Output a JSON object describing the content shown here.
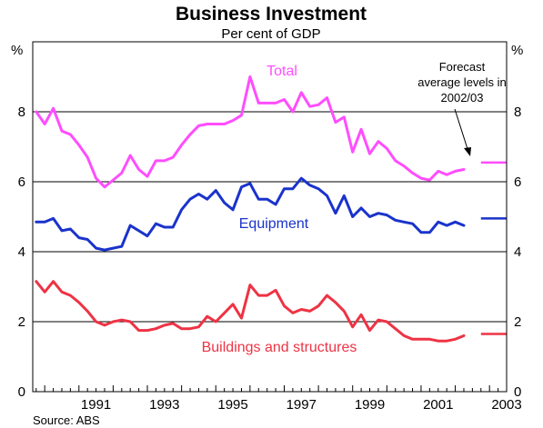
{
  "chart_data": {
    "type": "line",
    "title": "Business Investment",
    "subtitle": "Per cent of GDP",
    "unit_left": "%",
    "unit_right": "%",
    "source": "Source: ABS",
    "grid": true,
    "x_range": [
      1989.65,
      2003.5
    ],
    "y_range": [
      0,
      10
    ],
    "y_ticks": [
      0,
      2,
      4,
      6,
      8
    ],
    "y_tick_labels": [
      "0",
      "2",
      "4",
      "6",
      "8"
    ],
    "x_ticks": [
      1991,
      1993,
      1995,
      1997,
      1999,
      2001,
      2003
    ],
    "x_tick_labels": [
      "1991",
      "1993",
      "1995",
      "1997",
      "1999",
      "2001",
      "2003"
    ],
    "x_minor_step": 0.25,
    "series": [
      {
        "name": "Total",
        "color": "#ff4dff",
        "x": [
          1989.75,
          1990.0,
          1990.25,
          1990.5,
          1990.75,
          1991.0,
          1991.25,
          1991.5,
          1991.75,
          1992.0,
          1992.25,
          1992.5,
          1992.75,
          1993.0,
          1993.25,
          1993.5,
          1993.75,
          1994.0,
          1994.25,
          1994.5,
          1994.75,
          1995.0,
          1995.25,
          1995.5,
          1995.75,
          1996.0,
          1996.25,
          1996.5,
          1996.75,
          1997.0,
          1997.25,
          1997.5,
          1997.75,
          1998.0,
          1998.25,
          1998.5,
          1998.75,
          1999.0,
          1999.25,
          1999.5,
          1999.75,
          2000.0,
          2000.25,
          2000.5,
          2000.75,
          2001.0,
          2001.25,
          2001.5,
          2001.75,
          2002.0,
          2002.25
        ],
        "values": [
          8.0,
          7.65,
          8.1,
          7.45,
          7.35,
          7.05,
          6.7,
          6.1,
          5.85,
          6.05,
          6.25,
          6.75,
          6.35,
          6.15,
          6.6,
          6.6,
          6.7,
          7.05,
          7.35,
          7.6,
          7.65,
          7.65,
          7.65,
          7.75,
          7.9,
          9.0,
          8.25,
          8.25,
          8.25,
          8.35,
          8.0,
          8.55,
          8.15,
          8.2,
          8.4,
          7.7,
          7.85,
          6.85,
          7.5,
          6.8,
          7.15,
          6.95,
          6.6,
          6.45,
          6.25,
          6.1,
          6.05,
          6.3,
          6.2,
          6.3,
          6.35
        ]
      },
      {
        "name": "Equipment",
        "color": "#1a33cc",
        "x": [
          1989.75,
          1990.0,
          1990.25,
          1990.5,
          1990.75,
          1991.0,
          1991.25,
          1991.5,
          1991.75,
          1992.0,
          1992.25,
          1992.5,
          1992.75,
          1993.0,
          1993.25,
          1993.5,
          1993.75,
          1994.0,
          1994.25,
          1994.5,
          1994.75,
          1995.0,
          1995.25,
          1995.5,
          1995.75,
          1996.0,
          1996.25,
          1996.5,
          1996.75,
          1997.0,
          1997.25,
          1997.5,
          1997.75,
          1998.0,
          1998.25,
          1998.5,
          1998.75,
          1999.0,
          1999.25,
          1999.5,
          1999.75,
          2000.0,
          2000.25,
          2000.5,
          2000.75,
          2001.0,
          2001.25,
          2001.5,
          2001.75,
          2002.0,
          2002.25
        ],
        "values": [
          4.85,
          4.85,
          4.95,
          4.6,
          4.65,
          4.4,
          4.35,
          4.1,
          4.05,
          4.1,
          4.15,
          4.75,
          4.6,
          4.45,
          4.8,
          4.7,
          4.7,
          5.2,
          5.5,
          5.65,
          5.5,
          5.75,
          5.4,
          5.2,
          5.85,
          5.95,
          5.5,
          5.5,
          5.35,
          5.8,
          5.8,
          6.1,
          5.9,
          5.8,
          5.6,
          5.1,
          5.6,
          5.0,
          5.25,
          5.0,
          5.1,
          5.05,
          4.9,
          4.85,
          4.8,
          4.55,
          4.55,
          4.85,
          4.75,
          4.85,
          4.75
        ]
      },
      {
        "name": "Buildings and structures",
        "color": "#ee3344",
        "x": [
          1989.75,
          1990.0,
          1990.25,
          1990.5,
          1990.75,
          1991.0,
          1991.25,
          1991.5,
          1991.75,
          1992.0,
          1992.25,
          1992.5,
          1992.75,
          1993.0,
          1993.25,
          1993.5,
          1993.75,
          1994.0,
          1994.25,
          1994.5,
          1994.75,
          1995.0,
          1995.25,
          1995.5,
          1995.75,
          1996.0,
          1996.25,
          1996.5,
          1996.75,
          1997.0,
          1997.25,
          1997.5,
          1997.75,
          1998.0,
          1998.25,
          1998.5,
          1998.75,
          1999.0,
          1999.25,
          1999.5,
          1999.75,
          2000.0,
          2000.25,
          2000.5,
          2000.75,
          2001.0,
          2001.25,
          2001.5,
          2001.75,
          2002.0,
          2002.25
        ],
        "values": [
          3.15,
          2.85,
          3.15,
          2.85,
          2.75,
          2.55,
          2.3,
          2.0,
          1.9,
          2.0,
          2.05,
          2.0,
          1.75,
          1.75,
          1.8,
          1.9,
          1.95,
          1.8,
          1.8,
          1.85,
          2.15,
          2.0,
          2.25,
          2.5,
          2.1,
          3.05,
          2.75,
          2.75,
          2.9,
          2.45,
          2.25,
          2.35,
          2.3,
          2.45,
          2.75,
          2.55,
          2.3,
          1.85,
          2.2,
          1.75,
          2.05,
          2.0,
          1.8,
          1.6,
          1.5,
          1.5,
          1.5,
          1.45,
          1.45,
          1.5,
          1.6
        ]
      }
    ],
    "forecast": {
      "annotation_lines": [
        "Forecast",
        "average levels in",
        "2002/03"
      ],
      "x_start": 2002.75,
      "x_end": 2003.5,
      "levels": [
        {
          "series": "Total",
          "value": 6.55,
          "color": "#ff4dff"
        },
        {
          "series": "Equipment",
          "value": 4.95,
          "color": "#1a33cc"
        },
        {
          "series": "Buildings and structures",
          "value": 1.65,
          "color": "#ee3344"
        }
      ]
    }
  }
}
